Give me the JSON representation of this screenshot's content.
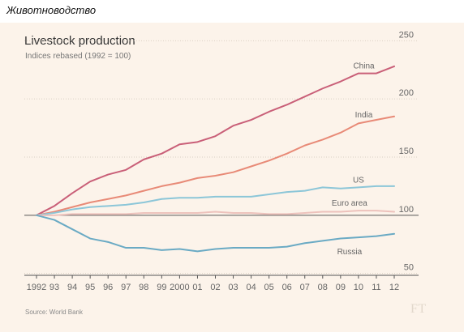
{
  "caption": "Животноводство",
  "source": "Source: World Bank",
  "logo": "FT",
  "colors": {
    "background": "#fcf3ea",
    "grid": "#d9cfc4",
    "axis": "#555555",
    "text": "#666666"
  },
  "chart_data": {
    "type": "line",
    "title": "Livestock production",
    "subtitle": "Indices rebased (1992 = 100)",
    "x": [
      "1992",
      "93",
      "94",
      "95",
      "96",
      "97",
      "98",
      "99",
      "2000",
      "01",
      "02",
      "03",
      "04",
      "05",
      "06",
      "07",
      "08",
      "09",
      "10",
      "11",
      "12"
    ],
    "ylim": [
      40,
      260
    ],
    "yticks": [
      50,
      100,
      150,
      200,
      250
    ],
    "grid": true,
    "series": [
      {
        "name": "China",
        "color": "#c95f78",
        "values": [
          100,
          108,
          119,
          129,
          135,
          139,
          148,
          153,
          161,
          163,
          168,
          177,
          182,
          189,
          195,
          202,
          209,
          215,
          222,
          222,
          228
        ]
      },
      {
        "name": "India",
        "color": "#e88a77",
        "values": [
          100,
          103,
          107,
          111,
          114,
          117,
          121,
          125,
          128,
          132,
          134,
          137,
          142,
          147,
          153,
          160,
          165,
          171,
          179,
          182,
          185
        ]
      },
      {
        "name": "US",
        "color": "#8cc6d8",
        "values": [
          100,
          102,
          105,
          107,
          108,
          109,
          111,
          114,
          115,
          115,
          116,
          116,
          116,
          118,
          120,
          121,
          124,
          123,
          124,
          125,
          125
        ]
      },
      {
        "name": "Euro area",
        "color": "#edc2bc",
        "values": [
          100,
          100,
          101,
          101,
          101,
          101,
          102,
          102,
          102,
          102,
          103,
          102,
          102,
          101,
          101,
          102,
          103,
          103,
          104,
          104,
          103
        ]
      },
      {
        "name": "Russia",
        "color": "#6aaac4",
        "values": [
          100,
          96,
          88,
          80,
          77,
          72,
          72,
          70,
          71,
          69,
          71,
          72,
          72,
          72,
          73,
          76,
          78,
          80,
          81,
          82,
          84
        ]
      }
    ]
  }
}
